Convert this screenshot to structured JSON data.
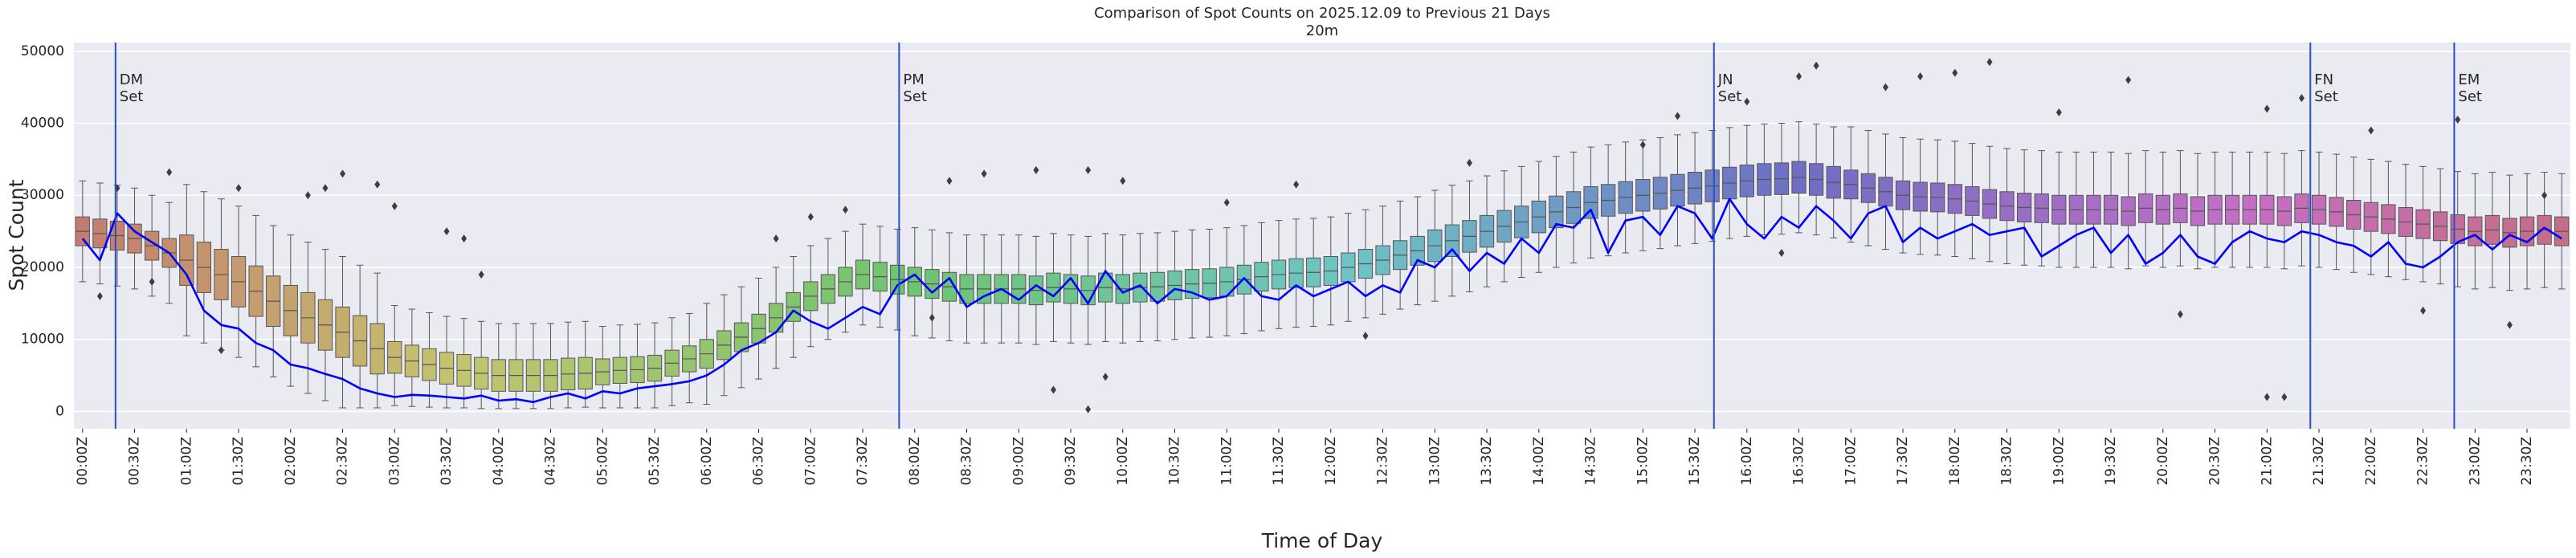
{
  "chart_data": {
    "type": "boxplot",
    "title": "Comparison of Spot Counts on 2025.12.09 to Previous 21 Days",
    "subtitle": "20m",
    "x_label": "Time of Day",
    "y_label": "Spot Count",
    "grid": true,
    "palette": "husl",
    "ylim": [
      -2400,
      51200
    ],
    "yticks": [
      0,
      10000,
      20000,
      30000,
      40000,
      50000
    ],
    "categories": [
      "00:00Z",
      null,
      null,
      "00:30Z",
      null,
      null,
      "01:00Z",
      null,
      null,
      "01:30Z",
      null,
      null,
      "02:00Z",
      null,
      null,
      "02:30Z",
      null,
      null,
      "03:00Z",
      null,
      null,
      "03:30Z",
      null,
      null,
      "04:00Z",
      null,
      null,
      "04:30Z",
      null,
      null,
      "05:00Z",
      null,
      null,
      "05:30Z",
      null,
      null,
      "06:00Z",
      null,
      null,
      "06:30Z",
      null,
      null,
      "07:00Z",
      null,
      null,
      "07:30Z",
      null,
      null,
      "08:00Z",
      null,
      null,
      "08:30Z",
      null,
      null,
      "09:00Z",
      null,
      null,
      "09:30Z",
      null,
      null,
      "10:00Z",
      null,
      null,
      "10:30Z",
      null,
      null,
      "11:00Z",
      null,
      null,
      "11:30Z",
      null,
      null,
      "12:00Z",
      null,
      null,
      "12:30Z",
      null,
      null,
      "13:00Z",
      null,
      null,
      "13:30Z",
      null,
      null,
      "14:00Z",
      null,
      null,
      "14:30Z",
      null,
      null,
      "15:00Z",
      null,
      null,
      "15:30Z",
      null,
      null,
      "16:00Z",
      null,
      null,
      "16:30Z",
      null,
      null,
      "17:00Z",
      null,
      null,
      "17:30Z",
      null,
      null,
      "18:00Z",
      null,
      null,
      "18:30Z",
      null,
      null,
      "19:00Z",
      null,
      null,
      "19:30Z",
      null,
      null,
      "20:00Z",
      null,
      null,
      "20:30Z",
      null,
      null,
      "21:00Z",
      null,
      null,
      "21:30Z",
      null,
      null,
      "22:00Z",
      null,
      null,
      "22:30Z",
      null,
      null,
      "23:00Z",
      null,
      null,
      "23:30Z",
      null,
      null
    ],
    "box": {
      "whisker_low": [
        18000,
        17700,
        17400,
        17000,
        16000,
        15000,
        10500,
        9500,
        8500,
        7500,
        6200,
        4800,
        3500,
        2500,
        1500,
        500,
        500,
        500,
        800,
        700,
        600,
        500,
        500,
        400,
        400,
        400,
        400,
        400,
        500,
        600,
        500,
        500,
        500,
        500,
        800,
        1200,
        1000,
        2200,
        3300,
        4500,
        6000,
        7500,
        9000,
        10000,
        11000,
        12000,
        11700,
        11300,
        10500,
        10200,
        9800,
        9500,
        9500,
        9500,
        9500,
        9300,
        9700,
        9500,
        9300,
        9700,
        9500,
        9700,
        9800,
        10000,
        10200,
        10300,
        10500,
        10800,
        11200,
        11500,
        11700,
        11800,
        12000,
        12500,
        13000,
        13500,
        14200,
        14800,
        15300,
        16000,
        16600,
        17300,
        18000,
        18600,
        19300,
        20000,
        20600,
        21300,
        21600,
        22000,
        22300,
        22600,
        23000,
        23300,
        23600,
        24000,
        24300,
        24500,
        24600,
        24800,
        24500,
        24100,
        23500,
        23000,
        22500,
        22000,
        21800,
        21700,
        21500,
        21200,
        20800,
        20500,
        20300,
        20200,
        20000,
        20000,
        20000,
        20000,
        19800,
        20200,
        20000,
        20200,
        19800,
        20000,
        20000,
        20000,
        20000,
        19800,
        20200,
        20000,
        19700,
        19300,
        19000,
        18700,
        18300,
        18000,
        17700,
        17300,
        17000,
        17200,
        16800,
        17000,
        17200,
        17000
      ],
      "q1": [
        23000,
        22700,
        22400,
        22000,
        21000,
        20000,
        17500,
        16500,
        15500,
        14500,
        13200,
        11800,
        10500,
        9500,
        8500,
        7500,
        6300,
        5200,
        5300,
        4800,
        4300,
        3800,
        3500,
        3100,
        2800,
        2800,
        2800,
        2800,
        3000,
        3100,
        3700,
        3900,
        4000,
        4200,
        4900,
        5500,
        6000,
        7200,
        8300,
        9500,
        11000,
        12500,
        14000,
        15000,
        16000,
        17000,
        16700,
        16300,
        16000,
        15700,
        15300,
        15000,
        15000,
        15000,
        15000,
        14800,
        15200,
        15000,
        14800,
        15200,
        15000,
        15200,
        15300,
        15500,
        15700,
        15800,
        16000,
        16300,
        16700,
        17000,
        17200,
        17300,
        17500,
        18000,
        18500,
        19000,
        19700,
        20300,
        20800,
        21500,
        22100,
        22800,
        23500,
        24100,
        24800,
        25500,
        26100,
        26800,
        27100,
        27500,
        27800,
        28100,
        28500,
        28800,
        29100,
        29500,
        29800,
        30000,
        30100,
        30300,
        30000,
        29600,
        29500,
        29000,
        28500,
        28000,
        27800,
        27700,
        27500,
        27200,
        26800,
        26500,
        26300,
        26200,
        26000,
        26000,
        26000,
        26000,
        25800,
        26200,
        26000,
        26200,
        25800,
        26000,
        26000,
        26000,
        26000,
        25800,
        26200,
        26000,
        25700,
        25300,
        25000,
        24700,
        24300,
        24000,
        23700,
        23300,
        23000,
        23200,
        22800,
        23000,
        23200,
        23000
      ],
      "median": [
        25000,
        24700,
        24400,
        24000,
        23000,
        22000,
        21000,
        20000,
        19000,
        18000,
        16700,
        15300,
        14000,
        13000,
        12000,
        11000,
        9800,
        8700,
        7500,
        7000,
        6500,
        6000,
        5700,
        5300,
        5000,
        5000,
        5000,
        5000,
        5200,
        5300,
        5500,
        5700,
        5800,
        6000,
        6700,
        7300,
        8000,
        9200,
        10300,
        11500,
        13000,
        14500,
        16000,
        17000,
        18000,
        19000,
        18700,
        18300,
        18000,
        17700,
        17300,
        17000,
        17000,
        17000,
        17000,
        16800,
        17200,
        17000,
        16800,
        17200,
        17000,
        17200,
        17300,
        17500,
        17700,
        17800,
        18000,
        18300,
        18700,
        19000,
        19200,
        19300,
        19500,
        20000,
        20500,
        21000,
        21700,
        22300,
        23000,
        23700,
        24300,
        25000,
        25700,
        26300,
        27000,
        27700,
        28300,
        29000,
        29300,
        29700,
        30000,
        30300,
        30700,
        31000,
        31300,
        31700,
        32000,
        32200,
        32300,
        32500,
        32200,
        31800,
        31500,
        31000,
        30500,
        30000,
        29800,
        29700,
        29500,
        29200,
        28800,
        28500,
        28300,
        28200,
        28000,
        28000,
        28000,
        28000,
        27800,
        28200,
        28000,
        28200,
        27800,
        28000,
        28000,
        28000,
        28000,
        27800,
        28200,
        28000,
        27700,
        27300,
        27000,
        26700,
        26300,
        26000,
        25700,
        25300,
        25000,
        25200,
        24800,
        25000,
        25200,
        25000
      ],
      "q3": [
        27000,
        26700,
        26400,
        26000,
        25000,
        24000,
        24500,
        23500,
        22500,
        21500,
        20200,
        18800,
        17500,
        16500,
        15500,
        14500,
        13300,
        12200,
        9700,
        9200,
        8700,
        8200,
        7900,
        7500,
        7200,
        7200,
        7200,
        7200,
        7400,
        7500,
        7300,
        7500,
        7600,
        7800,
        8500,
        9100,
        10000,
        11200,
        12300,
        13500,
        15000,
        16500,
        18000,
        19000,
        20000,
        21000,
        20700,
        20300,
        20000,
        19700,
        19300,
        19000,
        19000,
        19000,
        19000,
        18800,
        19200,
        19000,
        18800,
        19200,
        19000,
        19200,
        19300,
        19500,
        19700,
        19800,
        20000,
        20300,
        20700,
        21000,
        21200,
        21300,
        21500,
        22000,
        22500,
        23000,
        23700,
        24300,
        25200,
        25900,
        26500,
        27200,
        27900,
        28500,
        29200,
        29900,
        30500,
        31200,
        31500,
        31900,
        32200,
        32500,
        32900,
        33200,
        33500,
        33900,
        34200,
        34400,
        34500,
        34700,
        34400,
        34000,
        33500,
        33000,
        32500,
        32000,
        31800,
        31700,
        31500,
        31200,
        30800,
        30500,
        30300,
        30200,
        30000,
        30000,
        30000,
        30000,
        29800,
        30200,
        30000,
        30200,
        29800,
        30000,
        30000,
        30000,
        30000,
        29800,
        30200,
        30000,
        29700,
        29300,
        29000,
        28700,
        28300,
        28000,
        27700,
        27300,
        27000,
        27200,
        26800,
        27000,
        27200,
        27000
      ],
      "whisker_high": [
        32000,
        31700,
        31400,
        31000,
        30000,
        29000,
        31500,
        30500,
        29500,
        28500,
        27200,
        25800,
        24500,
        23500,
        22500,
        21500,
        20300,
        19200,
        14700,
        14200,
        13700,
        13200,
        12900,
        12500,
        12200,
        12200,
        12200,
        12200,
        12400,
        12500,
        11800,
        12000,
        12100,
        12300,
        13000,
        13600,
        15000,
        16200,
        17300,
        18500,
        20000,
        21500,
        23000,
        24000,
        25000,
        26000,
        25700,
        25300,
        25500,
        25200,
        24800,
        24500,
        24500,
        24500,
        24500,
        24300,
        24700,
        24500,
        24300,
        24700,
        24500,
        24700,
        24800,
        25000,
        25200,
        25300,
        25500,
        25800,
        26200,
        26500,
        26700,
        26800,
        27000,
        27500,
        28000,
        28500,
        29200,
        29800,
        30700,
        31400,
        32000,
        32700,
        33400,
        34000,
        34700,
        35400,
        36000,
        36700,
        37000,
        37400,
        37700,
        38000,
        38400,
        38700,
        39000,
        39400,
        39700,
        39900,
        40000,
        40200,
        39900,
        39500,
        39500,
        39000,
        38500,
        38000,
        37800,
        37700,
        37500,
        37200,
        36800,
        36500,
        36300,
        36200,
        36000,
        36000,
        36000,
        36000,
        35800,
        36200,
        36000,
        36200,
        35800,
        36000,
        36000,
        36000,
        36000,
        35800,
        36200,
        36000,
        35700,
        35300,
        35000,
        34700,
        34300,
        34000,
        33700,
        33300,
        33000,
        33200,
        32800,
        33000,
        33200,
        33000
      ]
    },
    "outliers": {
      "index": [
        1,
        2,
        4,
        5,
        8,
        9,
        13,
        14,
        15,
        17,
        18,
        21,
        22,
        23,
        40,
        42,
        44,
        49,
        50,
        52,
        55,
        56,
        58,
        58,
        59,
        60,
        66,
        70,
        74,
        80,
        90,
        92,
        96,
        98,
        99,
        100,
        104,
        106,
        108,
        110,
        114,
        118,
        121,
        126,
        127,
        126,
        128,
        132,
        135,
        137,
        140,
        142
      ],
      "values": [
        16000,
        31000,
        18000,
        33200,
        8500,
        31000,
        30000,
        31000,
        33000,
        31500,
        28500,
        25000,
        24000,
        19000,
        24000,
        27000,
        28000,
        13000,
        32000,
        33000,
        33500,
        3000,
        300,
        33500,
        4800,
        32000,
        29000,
        31500,
        10500,
        34500,
        37000,
        41000,
        43000,
        22000,
        46500,
        48000,
        45000,
        46500,
        47000,
        48500,
        41500,
        46000,
        13500,
        2000,
        2000,
        42000,
        43500,
        39000,
        14000,
        40500,
        12000,
        30000
      ]
    },
    "line": {
      "color": "#0000ff",
      "values": [
        24000,
        21000,
        27500,
        25000,
        23500,
        22000,
        19000,
        14000,
        12000,
        11500,
        9500,
        8500,
        6500,
        6000,
        5200,
        4500,
        3200,
        2500,
        2000,
        2300,
        2200,
        2000,
        1800,
        2200,
        1500,
        1700,
        1300,
        2000,
        2500,
        1800,
        2800,
        2500,
        3200,
        3500,
        3800,
        4200,
        5000,
        6500,
        8500,
        9500,
        11000,
        14000,
        12500,
        11500,
        13000,
        14500,
        13500,
        17500,
        19000,
        16500,
        18500,
        14500,
        16000,
        17000,
        15500,
        17500,
        16000,
        18500,
        15000,
        19500,
        16500,
        17500,
        15000,
        17000,
        16500,
        15500,
        16000,
        18500,
        16000,
        15500,
        17500,
        16000,
        17000,
        18000,
        16000,
        17500,
        16500,
        21000,
        20000,
        22500,
        19500,
        22000,
        20500,
        24000,
        22000,
        26000,
        25500,
        28000,
        22000,
        26500,
        27000,
        24500,
        28500,
        27500,
        24000,
        29500,
        26000,
        24000,
        27000,
        25500,
        28500,
        26500,
        24000,
        27500,
        28500,
        23500,
        25500,
        24000,
        25000,
        26000,
        24500,
        25000,
        25500,
        21500,
        23000,
        24500,
        25500,
        22000,
        24500,
        20500,
        22000,
        24500,
        21500,
        20500,
        23500,
        25000,
        24000,
        23500,
        25000,
        24500,
        23500,
        23000,
        21500,
        23500,
        20500,
        20000,
        21500,
        23500,
        24500,
        22500,
        24500,
        23500,
        25500,
        24000
      ]
    },
    "annotations": [
      {
        "x": 1.9,
        "text": [
          "DM",
          "Set"
        ],
        "color": "#2a4fc4"
      },
      {
        "x": 47.1,
        "text": [
          "PM",
          "Set"
        ],
        "color": "#2a4fc4"
      },
      {
        "x": 94.1,
        "text": [
          "JN",
          "Set"
        ],
        "color": "#2a4fc4"
      },
      {
        "x": 128.5,
        "text": [
          "FN",
          "Set"
        ],
        "color": "#2a4fc4"
      },
      {
        "x": 136.8,
        "text": [
          "EM",
          "Set"
        ],
        "color": "#2a4fc4"
      }
    ]
  }
}
